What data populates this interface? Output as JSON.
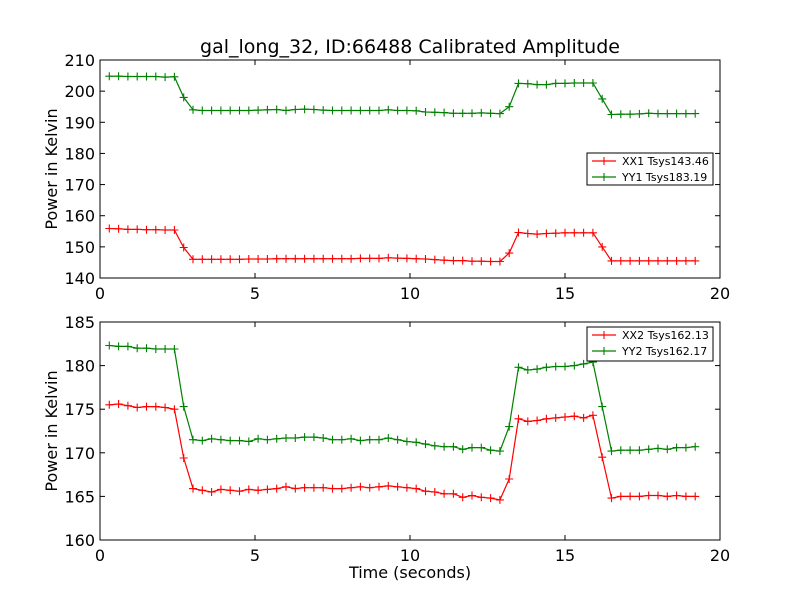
{
  "title": "gal_long_32, ID:66488 Calibrated Amplitude",
  "xlabel": "Time (seconds)",
  "chart_data": [
    {
      "type": "line",
      "ylabel": "Power in Kelvin",
      "xlim": [
        0,
        20
      ],
      "ylim": [
        140,
        210
      ],
      "xticks": [
        "0",
        "5",
        "10",
        "15",
        "20"
      ],
      "yticks": [
        "140",
        "150",
        "160",
        "170",
        "180",
        "190",
        "200",
        "210"
      ],
      "legend_position": "center-right",
      "x": [
        0.3,
        0.6,
        0.9,
        1.2,
        1.5,
        1.8,
        2.1,
        2.4,
        2.7,
        3.0,
        3.3,
        3.6,
        3.9,
        4.2,
        4.5,
        4.8,
        5.1,
        5.4,
        5.7,
        6.0,
        6.3,
        6.6,
        6.9,
        7.2,
        7.5,
        7.8,
        8.1,
        8.4,
        8.7,
        9.0,
        9.3,
        9.6,
        9.9,
        10.2,
        10.5,
        10.8,
        11.1,
        11.4,
        11.7,
        12.0,
        12.3,
        12.6,
        12.9,
        13.2,
        13.5,
        13.8,
        14.1,
        14.4,
        14.7,
        15.0,
        15.3,
        15.6,
        15.9,
        16.2,
        16.5,
        16.8,
        17.1,
        17.4,
        17.7,
        18.0,
        18.3,
        18.6,
        18.9,
        19.2
      ],
      "series": [
        {
          "name": "XX1 Tsys143.46",
          "color": "#ff0000",
          "values": [
            155.9,
            155.8,
            155.6,
            155.6,
            155.5,
            155.5,
            155.4,
            155.4,
            149.8,
            146.0,
            146.0,
            146.0,
            146.0,
            146.0,
            146.0,
            146.1,
            146.1,
            146.1,
            146.2,
            146.2,
            146.2,
            146.2,
            146.2,
            146.2,
            146.2,
            146.2,
            146.2,
            146.3,
            146.3,
            146.3,
            146.5,
            146.4,
            146.3,
            146.2,
            146.1,
            145.9,
            145.7,
            145.6,
            145.6,
            145.4,
            145.4,
            145.3,
            145.3,
            148.0,
            154.6,
            154.3,
            154.1,
            154.3,
            154.4,
            154.5,
            154.5,
            154.5,
            154.5,
            150.0,
            145.5,
            145.5,
            145.5,
            145.5,
            145.5,
            145.5,
            145.5,
            145.5,
            145.5,
            145.5
          ]
        },
        {
          "name": "YY1 Tsys183.19",
          "color": "#008000",
          "values": [
            204.8,
            204.8,
            204.7,
            204.7,
            204.7,
            204.7,
            204.5,
            204.6,
            198.0,
            194.0,
            193.8,
            193.8,
            193.8,
            193.8,
            193.8,
            193.8,
            193.9,
            194.0,
            194.1,
            193.8,
            194.1,
            194.2,
            194.1,
            193.9,
            193.8,
            193.8,
            193.8,
            193.8,
            193.8,
            193.8,
            194.0,
            193.8,
            193.8,
            193.7,
            193.3,
            193.2,
            193.1,
            192.9,
            192.9,
            192.9,
            193.0,
            192.9,
            192.8,
            195.0,
            202.5,
            202.4,
            202.1,
            202.1,
            202.5,
            202.5,
            202.6,
            202.6,
            202.6,
            197.5,
            192.5,
            192.6,
            192.6,
            192.7,
            192.9,
            192.8,
            192.8,
            192.8,
            192.8,
            192.8
          ]
        }
      ]
    },
    {
      "type": "line",
      "ylabel": "Power in Kelvin",
      "xlim": [
        0,
        20
      ],
      "ylim": [
        160,
        185
      ],
      "xticks": [
        "0",
        "5",
        "10",
        "15",
        "20"
      ],
      "yticks": [
        "160",
        "165",
        "170",
        "175",
        "180",
        "185"
      ],
      "legend_position": "top-right",
      "x": [
        0.3,
        0.6,
        0.9,
        1.2,
        1.5,
        1.8,
        2.1,
        2.4,
        2.7,
        3.0,
        3.3,
        3.6,
        3.9,
        4.2,
        4.5,
        4.8,
        5.1,
        5.4,
        5.7,
        6.0,
        6.3,
        6.6,
        6.9,
        7.2,
        7.5,
        7.8,
        8.1,
        8.4,
        8.7,
        9.0,
        9.3,
        9.6,
        9.9,
        10.2,
        10.5,
        10.8,
        11.1,
        11.4,
        11.7,
        12.0,
        12.3,
        12.6,
        12.9,
        13.2,
        13.5,
        13.8,
        14.1,
        14.4,
        14.7,
        15.0,
        15.3,
        15.6,
        15.9,
        16.2,
        16.5,
        16.8,
        17.1,
        17.4,
        17.7,
        18.0,
        18.3,
        18.6,
        18.9,
        19.2
      ],
      "series": [
        {
          "name": "XX2 Tsys162.13",
          "color": "#ff0000",
          "values": [
            175.5,
            175.6,
            175.4,
            175.2,
            175.3,
            175.3,
            175.2,
            175.0,
            169.4,
            165.9,
            165.7,
            165.5,
            165.8,
            165.7,
            165.6,
            165.8,
            165.7,
            165.8,
            165.9,
            166.1,
            165.9,
            166.0,
            166.0,
            166.0,
            165.9,
            165.9,
            166.0,
            166.1,
            166.0,
            166.1,
            166.2,
            166.1,
            166.0,
            165.9,
            165.6,
            165.5,
            165.3,
            165.3,
            164.9,
            165.1,
            164.9,
            164.8,
            164.6,
            167.0,
            173.9,
            173.6,
            173.7,
            173.9,
            174.0,
            174.1,
            174.2,
            174.0,
            174.3,
            169.5,
            164.8,
            165.0,
            165.0,
            165.0,
            165.1,
            165.1,
            165.0,
            165.1,
            165.0,
            165.0
          ]
        },
        {
          "name": "YY2 Tsys162.17",
          "color": "#008000",
          "values": [
            182.3,
            182.2,
            182.2,
            182.0,
            182.0,
            181.9,
            181.9,
            181.9,
            175.3,
            171.5,
            171.4,
            171.6,
            171.5,
            171.4,
            171.4,
            171.3,
            171.6,
            171.5,
            171.6,
            171.7,
            171.7,
            171.8,
            171.8,
            171.7,
            171.5,
            171.5,
            171.6,
            171.4,
            171.5,
            171.5,
            171.7,
            171.5,
            171.3,
            171.2,
            171.0,
            170.8,
            170.7,
            170.7,
            170.4,
            170.6,
            170.6,
            170.3,
            170.2,
            173.0,
            179.8,
            179.5,
            179.6,
            179.8,
            179.9,
            179.9,
            180.0,
            180.2,
            180.4,
            175.3,
            170.2,
            170.3,
            170.3,
            170.3,
            170.4,
            170.5,
            170.4,
            170.6,
            170.6,
            170.7
          ]
        }
      ]
    }
  ]
}
